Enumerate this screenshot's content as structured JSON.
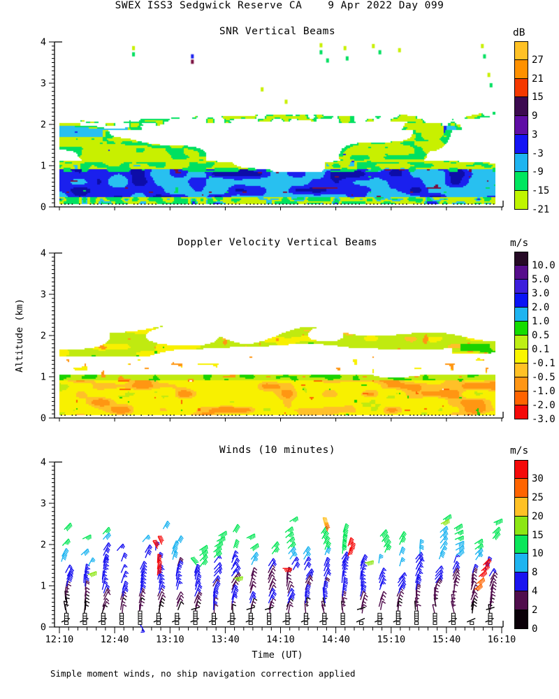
{
  "header": {
    "title": "SWEX ISS3 Sedgwick Reserve CA    9 Apr 2022 Day 099"
  },
  "footer": {
    "note": "Simple moment winds, no ship navigation correction applied"
  },
  "axes": {
    "x": {
      "label": "Time (UT)",
      "ticks": [
        "12:10",
        "12:40",
        "13:10",
        "13:40",
        "14:10",
        "14:40",
        "15:10",
        "15:40",
        "16:10"
      ],
      "minor_step_min": 5,
      "major_step_min": 30,
      "span_min": 240
    },
    "y": {
      "label": "Altitude (km)",
      "ticks": [
        "0",
        "1",
        "2",
        "3",
        "4"
      ],
      "min": 0,
      "max": 4
    }
  },
  "chart_data": [
    {
      "type": "heatmap",
      "title": "SNR Vertical Beams",
      "units": "dB",
      "xlabel": "Time (UT)",
      "ylabel": "Altitude (km)",
      "xlim": [
        "12:10",
        "16:10"
      ],
      "ylim": [
        0,
        4
      ],
      "colorbar": {
        "title": "dB",
        "labels": [
          "27",
          "21",
          "15",
          "9",
          "3",
          "-3",
          "-9",
          "-15",
          "-21"
        ],
        "colors": [
          "#ffc125",
          "#ff9100",
          "#f53900",
          "#3c0a50",
          "#5f0da5",
          "#1414f5",
          "#1eb4f0",
          "#00e65f",
          "#bff500"
        ]
      },
      "palette": {
        "chartreuse": "#c8f000",
        "green": "#00e060",
        "lightblue": "#28c0f0",
        "blue": "#1a20ee",
        "navy": "#0d0da8",
        "maroon": "#7a1040"
      },
      "bands": [
        {
          "alt": [
            0.07,
            0.24
          ],
          "desc": "green/chartreuse fringe just above surface"
        },
        {
          "alt": [
            0.24,
            0.92
          ],
          "desc": "boundary layer: light-blue (-9 dB) with blue/navy (-3..9 dB) blobs and maroon specks"
        },
        {
          "alt": [
            0.92,
            1.1
          ],
          "desc": "green (-15 dB) transition band"
        },
        {
          "alt": [
            1.1,
            2.3
          ],
          "desc": "chartreuse/green cloud band with saturated white cores and cyan patches near 1.8-2.1 km"
        },
        {
          "alt": [
            2.3,
            4.0
          ],
          "desc": "clear air (white) with sparse echoes near 3.5-4 km"
        }
      ],
      "specks": [
        {
          "t": 0.17,
          "alt": 3.85,
          "color": "chartreuse"
        },
        {
          "t": 0.17,
          "alt": 3.7,
          "color": "green"
        },
        {
          "t": 0.305,
          "alt": 3.65,
          "color": "blue"
        },
        {
          "t": 0.305,
          "alt": 3.52,
          "color": "maroon"
        },
        {
          "t": 0.6,
          "alt": 3.75,
          "color": "green"
        },
        {
          "t": 0.6,
          "alt": 3.92,
          "color": "chartreuse"
        },
        {
          "t": 0.615,
          "alt": 3.55,
          "color": "green"
        },
        {
          "t": 0.655,
          "alt": 3.85,
          "color": "chartreuse"
        },
        {
          "t": 0.66,
          "alt": 3.6,
          "color": "green"
        },
        {
          "t": 0.72,
          "alt": 3.9,
          "color": "chartreuse"
        },
        {
          "t": 0.735,
          "alt": 3.75,
          "color": "green"
        },
        {
          "t": 0.78,
          "alt": 3.8,
          "color": "chartreuse"
        },
        {
          "t": 0.465,
          "alt": 2.85,
          "color": "chartreuse"
        },
        {
          "t": 0.52,
          "alt": 2.55,
          "color": "chartreuse"
        },
        {
          "t": 0.97,
          "alt": 3.9,
          "color": "chartreuse"
        },
        {
          "t": 0.975,
          "alt": 3.65,
          "color": "green"
        },
        {
          "t": 0.985,
          "alt": 3.2,
          "color": "chartreuse"
        },
        {
          "t": 0.99,
          "alt": 2.95,
          "color": "green"
        }
      ]
    },
    {
      "type": "heatmap",
      "title": "Doppler Velocity Vertical Beams",
      "units": "m/s",
      "xlabel": "Time (UT)",
      "ylabel": "Altitude (km)",
      "xlim": [
        "12:10",
        "16:10"
      ],
      "ylim": [
        0,
        4
      ],
      "colorbar": {
        "title": "m/s",
        "labels": [
          "10.0",
          "5.0",
          "3.0",
          "2.0",
          "1.0",
          "0.5",
          "0.1",
          "-0.1",
          "-0.5",
          "-1.0",
          "-2.0",
          "-3.0"
        ],
        "colors": [
          "#260a26",
          "#560d8c",
          "#3c1edc",
          "#0a14f5",
          "#1eb4f0",
          "#14dc00",
          "#beee14",
          "#faf500",
          "#ffc125",
          "#ff9614",
          "#ff6400",
          "#f50a0a"
        ]
      },
      "palette": {
        "yellow": "#f8f000",
        "gold": "#ffc028",
        "orange": "#ff9612",
        "deeporange": "#ff6400",
        "green": "#1ad200",
        "chartreuse": "#c0ea10"
      },
      "bands": [
        {
          "alt": [
            0.07,
            0.9
          ],
          "desc": "downward velocities: yellow (-0.1..-0.5) base with gold/orange (-0.5..-2) blobs and green specks"
        },
        {
          "alt": [
            0.9,
            1.04
          ],
          "desc": "chartreuse/green upper edge with orange specks"
        },
        {
          "alt": [
            1.04,
            1.5
          ],
          "desc": "mostly clear with sparse yellow/orange echoes"
        },
        {
          "alt": [
            1.5,
            2.3
          ],
          "desc": "chartreuse/yellow cloud band with orange and green specks, broken by white gaps"
        }
      ]
    },
    {
      "type": "wind_barbs",
      "title": "Winds (10 minutes)",
      "units": "m/s",
      "xlabel": "Time (UT)",
      "ylabel": "Altitude (km)",
      "xlim": [
        "12:10",
        "16:10"
      ],
      "ylim": [
        0,
        4
      ],
      "colorbar": {
        "title": "m/s",
        "labels": [
          "30",
          "25",
          "20",
          "15",
          "10",
          "8",
          "4",
          "2",
          "0"
        ],
        "colors": [
          "#f50a0a",
          "#ff6400",
          "#ffc125",
          "#8ce614",
          "#0ae65a",
          "#1eb4f0",
          "#1a14f0",
          "#500d4c",
          "#0a0008"
        ]
      },
      "speed_scale": {
        "thresholds": [
          2,
          4,
          8,
          10,
          15,
          20,
          25,
          30
        ],
        "colors_low_to_high": [
          "#0a0008",
          "#500d4c",
          "#1a14f0",
          "#1eb4f0",
          "#0ae65a",
          "#8ce614",
          "#ffc125",
          "#ff6400",
          "#f50a0a"
        ]
      },
      "stations": {
        "count": 24,
        "first": "12:15",
        "step_min": 10,
        "alt_range": [
          0.33,
          2.65
        ]
      },
      "profile": {
        "surface_speed_ms": 2.2,
        "shear_ms_per_km": 2.1,
        "desc": "dark purple/blue barbs (2-8 m/s) below 1.3 km, blue/cyan/green (6-15 m/s) aloft"
      },
      "anomalies": [
        {
          "t": 0.225,
          "alt": 1.25,
          "color": "red",
          "psi": 5
        },
        {
          "t": 0.225,
          "alt": 1.4,
          "color": "red",
          "psi": 8
        },
        {
          "t": 0.225,
          "alt": 1.55,
          "color": "red",
          "psi": 3
        },
        {
          "t": 0.225,
          "alt": 1.9,
          "color": "red",
          "psi": -30
        },
        {
          "t": 0.235,
          "alt": 2.0,
          "color": "red",
          "psi": -25
        },
        {
          "t": 0.512,
          "alt": 1.42,
          "color": "red",
          "psi": 90
        },
        {
          "t": 0.662,
          "alt": 1.72,
          "color": "red",
          "psi": 15
        },
        {
          "t": 0.668,
          "alt": 1.84,
          "color": "red",
          "psi": 10
        },
        {
          "t": 0.662,
          "alt": 1.96,
          "color": "red",
          "psi": 18
        },
        {
          "t": 0.952,
          "alt": 0.9,
          "color": "orange",
          "psi": 48
        },
        {
          "t": 0.957,
          "alt": 1.05,
          "color": "orange",
          "psi": 50
        },
        {
          "t": 0.962,
          "alt": 1.22,
          "color": "red",
          "psi": 48
        },
        {
          "t": 0.968,
          "alt": 1.36,
          "color": "red",
          "psi": 46
        },
        {
          "t": 0.972,
          "alt": 1.5,
          "color": "red",
          "psi": 44
        },
        {
          "t": 0.615,
          "alt": 2.32,
          "color": "orange",
          "psi": -20
        },
        {
          "t": 0.61,
          "alt": 2.44,
          "color": "gold",
          "psi": -15
        },
        {
          "t": 0.7,
          "alt": 1.55,
          "color": "chartreuse",
          "psi": 75
        },
        {
          "t": 0.4,
          "alt": 1.18,
          "color": "chartreuse",
          "psi": 80
        },
        {
          "t": 0.065,
          "alt": 1.27,
          "color": "chartreuse",
          "psi": 70
        },
        {
          "t": 0.875,
          "alt": 2.5,
          "color": "chartreuse",
          "psi": 60
        },
        {
          "t": 0.88,
          "alt": 2.6,
          "color": "green",
          "psi": 55
        },
        {
          "t": 0.315,
          "alt": 1.5,
          "color": "green",
          "psi": -40
        },
        {
          "t": 0.185,
          "alt": 0.07,
          "color": "blue",
          "psi": 150
        }
      ],
      "ground_markers": {
        "shape": "open-square",
        "stack_alts": [
          0.19,
          0.245,
          0.3
        ],
        "single_alt": 0.095
      }
    }
  ]
}
